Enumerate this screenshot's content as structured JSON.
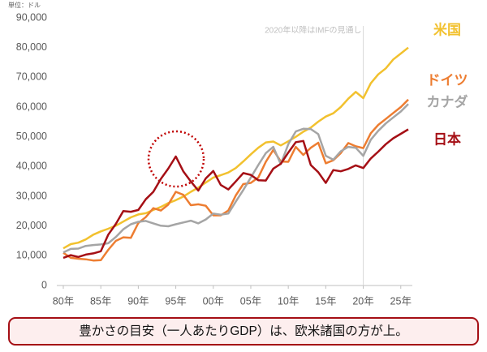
{
  "chart_data": {
    "type": "line",
    "unit_label": "単位：ドル",
    "annotation": "2020年以降はIMFの見通し",
    "forecast_from": 2020,
    "caption": "豊かさの目安（一人あたりGDP）は、欧米諸国の方が上。",
    "x": [
      1980,
      1981,
      1982,
      1983,
      1984,
      1985,
      1986,
      1987,
      1988,
      1989,
      1990,
      1991,
      1992,
      1993,
      1994,
      1995,
      1996,
      1997,
      1998,
      1999,
      2000,
      2001,
      2002,
      2003,
      2004,
      2005,
      2006,
      2007,
      2008,
      2009,
      2010,
      2011,
      2012,
      2013,
      2014,
      2015,
      2016,
      2017,
      2018,
      2019,
      2020,
      2021,
      2022,
      2023,
      2024,
      2025,
      2026
    ],
    "xlim": [
      1980,
      2026
    ],
    "xticks": [
      {
        "value": 1980,
        "label": "80年"
      },
      {
        "value": 1985,
        "label": "85年"
      },
      {
        "value": 1990,
        "label": "90年"
      },
      {
        "value": 1995,
        "label": "95年"
      },
      {
        "value": 2000,
        "label": "00年"
      },
      {
        "value": 2005,
        "label": "05年"
      },
      {
        "value": 2010,
        "label": "10年"
      },
      {
        "value": 2015,
        "label": "15年"
      },
      {
        "value": 2020,
        "label": "20年"
      },
      {
        "value": 2025,
        "label": "25年"
      }
    ],
    "ylim": [
      0,
      90000
    ],
    "yticks": [
      0,
      {
        "value": 10000,
        "label": "10,000"
      },
      {
        "value": 20000,
        "label": "20,000"
      },
      {
        "value": 30000,
        "label": "30,000"
      },
      {
        "value": 40000,
        "label": "40,000"
      },
      {
        "value": 50000,
        "label": "50,000"
      },
      {
        "value": 60000,
        "label": "60,000"
      },
      {
        "value": 70000,
        "label": "70,000"
      },
      {
        "value": 80000,
        "label": "80,000"
      },
      {
        "value": 90000,
        "label": "90,000"
      }
    ],
    "grid": false,
    "series": [
      {
        "name": "米国",
        "color": "#f2c12e",
        "values": [
          12500,
          13900,
          14400,
          15500,
          17100,
          18200,
          19100,
          20100,
          21500,
          22900,
          23900,
          24300,
          25400,
          26400,
          27700,
          28700,
          29900,
          31500,
          32900,
          34600,
          36300,
          37100,
          38000,
          39500,
          41700,
          44100,
          46300,
          48100,
          48400,
          47100,
          48500,
          50000,
          51700,
          53100,
          55100,
          56800,
          57900,
          60000,
          62800,
          65100,
          63000,
          68000,
          71000,
          73000,
          76000,
          78000,
          80000
        ]
      },
      {
        "name": "ドイツ",
        "color": "#ed7d31",
        "values": [
          11000,
          9300,
          9000,
          8800,
          8400,
          8500,
          12000,
          15000,
          16200,
          16000,
          21000,
          23000,
          26000,
          25200,
          27200,
          31500,
          30500,
          27000,
          27300,
          26800,
          23600,
          23600,
          25200,
          30300,
          34100,
          34500,
          36300,
          41600,
          45600,
          41700,
          41600,
          46600,
          43900,
          46300,
          48000,
          41100,
          42100,
          44500,
          47900,
          46800,
          46200,
          51200,
          54000,
          56000,
          58000,
          60000,
          62500
        ]
      },
      {
        "name": "カナダ",
        "color": "#a5a5a5",
        "values": [
          11100,
          12300,
          12400,
          13300,
          13600,
          13800,
          14200,
          16300,
          18900,
          20600,
          21400,
          21700,
          20900,
          20100,
          19900,
          20600,
          21200,
          21800,
          20900,
          22200,
          24200,
          23800,
          24200,
          28200,
          32100,
          36300,
          40500,
          44500,
          46600,
          40800,
          47500,
          51800,
          52700,
          52600,
          50900,
          43600,
          42300,
          45100,
          46600,
          46300,
          43600,
          49000,
          52000,
          54500,
          56500,
          58500,
          61000
        ]
      },
      {
        "name": "日本",
        "color": "#a50f15",
        "values": [
          9300,
          10200,
          9600,
          10400,
          10800,
          11500,
          17100,
          20700,
          25000,
          24800,
          25400,
          29000,
          31500,
          35800,
          39300,
          43400,
          38400,
          35000,
          31900,
          36000,
          38500,
          33800,
          32300,
          35000,
          37800,
          37200,
          35400,
          35300,
          39300,
          40900,
          44700,
          48200,
          48600,
          40500,
          38100,
          34500,
          38800,
          38400,
          39200,
          40400,
          39500,
          42700,
          45000,
          47500,
          49500,
          51000,
          52500
        ]
      }
    ]
  }
}
